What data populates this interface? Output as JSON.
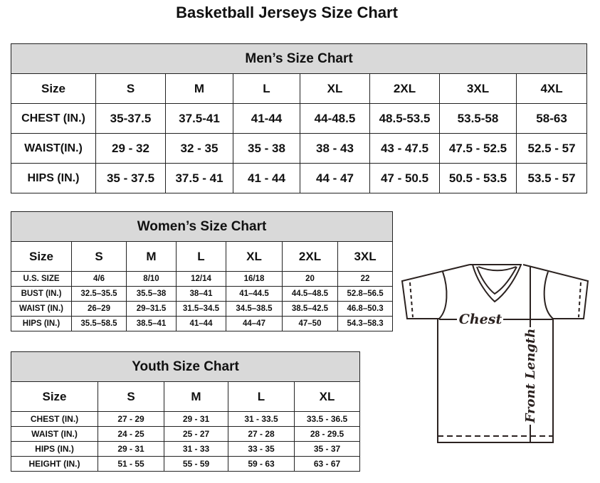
{
  "title": "Basketball Jerseys Size Chart",
  "men": {
    "heading": "Men’s Size Chart",
    "header": [
      "Size",
      "S",
      "M",
      "L",
      "XL",
      "2XL",
      "3XL",
      "4XL"
    ],
    "rows": [
      [
        "CHEST (IN.)",
        "35-37.5",
        "37.5-41",
        "41-44",
        "44-48.5",
        "48.5-53.5",
        "53.5-58",
        "58-63"
      ],
      [
        "WAIST(IN.)",
        "29 - 32",
        "32 - 35",
        "35 - 38",
        "38 - 43",
        "43 - 47.5",
        "47.5 - 52.5",
        "52.5 - 57"
      ],
      [
        "HIPS (IN.)",
        "35 - 37.5",
        "37.5 - 41",
        "41 - 44",
        "44 - 47",
        "47 - 50.5",
        "50.5 - 53.5",
        "53.5 - 57"
      ]
    ]
  },
  "women": {
    "heading": "Women’s Size Chart",
    "header": [
      "Size",
      "S",
      "M",
      "L",
      "XL",
      "2XL",
      "3XL"
    ],
    "rows": [
      [
        "U.S. SIZE",
        "4/6",
        "8/10",
        "12/14",
        "16/18",
        "20",
        "22"
      ],
      [
        "BUST (IN.)",
        "32.5–35.5",
        "35.5–38",
        "38–41",
        "41–44.5",
        "44.5–48.5",
        "52.8–56.5"
      ],
      [
        "WAIST (IN.)",
        "26–29",
        "29–31.5",
        "31.5–34.5",
        "34.5–38.5",
        "38.5–42.5",
        "46.8–50.3"
      ],
      [
        "HIPS (IN.)",
        "35.5–58.5",
        "38.5–41",
        "41–44",
        "44–47",
        "47–50",
        "54.3–58.3"
      ]
    ]
  },
  "youth": {
    "heading": "Youth Size Chart",
    "header": [
      "Size",
      "S",
      "M",
      "L",
      "XL"
    ],
    "rows": [
      [
        "CHEST (IN.)",
        "27 - 29",
        "29 - 31",
        "31 - 33.5",
        "33.5 - 36.5"
      ],
      [
        "WAIST (IN.)",
        "24 - 25",
        "25 - 27",
        "27 - 28",
        "28 - 29.5"
      ],
      [
        "HIPS (IN.)",
        "29 - 31",
        "31 - 33",
        "33 - 35",
        "35 - 37"
      ],
      [
        "HEIGHT (IN.)",
        "51 - 55",
        "55 - 59",
        "59 - 63",
        "63 - 67"
      ]
    ]
  },
  "diagram": {
    "chest_label": "Chest",
    "length_label": "Front Length",
    "line_color": "#2b2220"
  }
}
